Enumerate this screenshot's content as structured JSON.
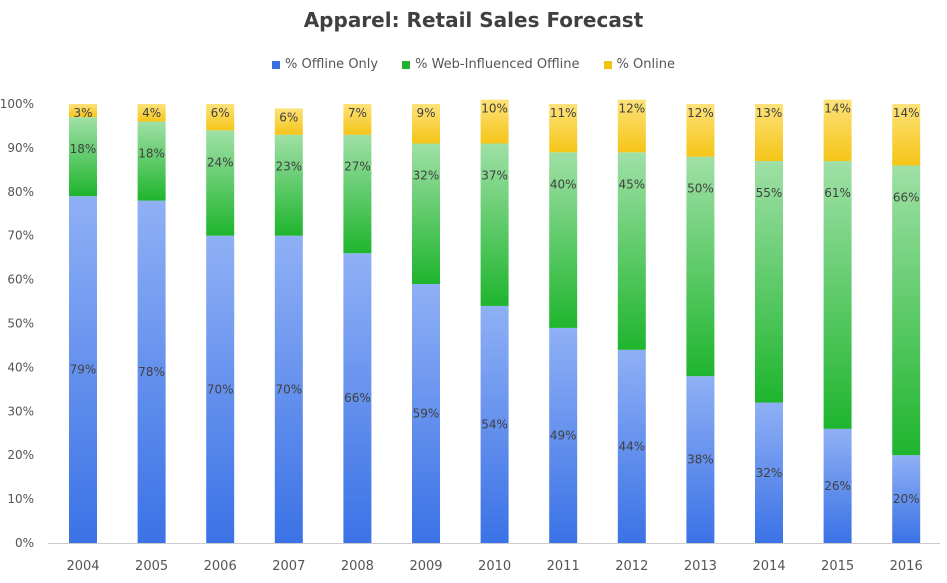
{
  "chart_data": {
    "type": "bar",
    "stacked": true,
    "title": "Apparel: Retail Sales Forecast",
    "categories": [
      "2004",
      "2005",
      "2006",
      "2007",
      "2008",
      "2009",
      "2010",
      "2011",
      "2012",
      "2013",
      "2014",
      "2015",
      "2016"
    ],
    "series": [
      {
        "name": "% Offline Only",
        "color": "#4a7fe8",
        "values": [
          79,
          78,
          70,
          70,
          66,
          59,
          54,
          49,
          44,
          38,
          32,
          26,
          20
        ],
        "labels": [
          "79%",
          "78%",
          "70%",
          "70%",
          "66%",
          "59%",
          "54%",
          "49%",
          "44%",
          "38%",
          "32%",
          "26%",
          "20%"
        ]
      },
      {
        "name": "% Web-Influenced Offline",
        "color": "#2cbf3a",
        "values": [
          18,
          18,
          24,
          23,
          27,
          32,
          37,
          40,
          45,
          50,
          55,
          61,
          66
        ],
        "labels": [
          "18%",
          "18%",
          "24%",
          "23%",
          "27%",
          "32%",
          "37%",
          "40%",
          "45%",
          "50%",
          "55%",
          "61%",
          "66%"
        ]
      },
      {
        "name": "% Online",
        "color": "#f5c518",
        "values": [
          3,
          4,
          6,
          6,
          7,
          9,
          10,
          11,
          12,
          12,
          13,
          14,
          14
        ],
        "labels": [
          "3%",
          "4%",
          "6%",
          "6%",
          "7%",
          "9%",
          "10%",
          "11%",
          "12%",
          "12%",
          "13%",
          "14%",
          "14%"
        ]
      }
    ],
    "ylim": [
      0,
      100
    ],
    "yticks": [
      "0%",
      "10%",
      "20%",
      "30%",
      "40%",
      "50%",
      "60%",
      "70%",
      "80%",
      "90%",
      "100%"
    ],
    "legend_position": "top",
    "grid": false
  }
}
